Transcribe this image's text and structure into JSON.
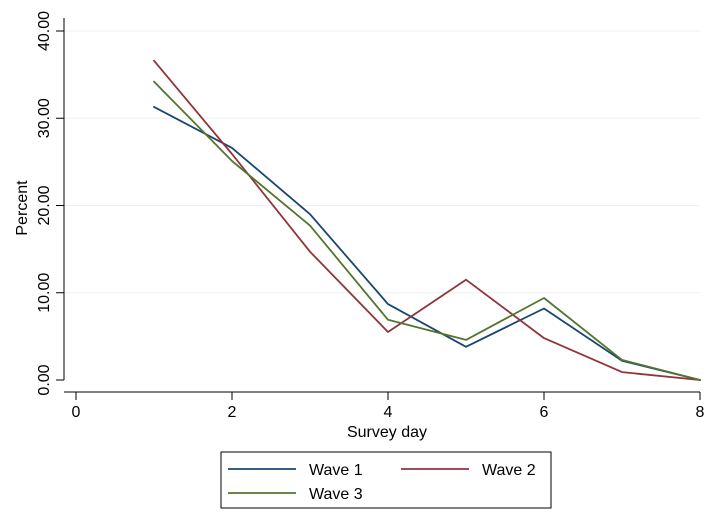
{
  "chart_data": {
    "type": "line",
    "title": "",
    "xlabel": "Survey day",
    "ylabel": "Percent",
    "xlim": [
      0,
      8
    ],
    "ylim": [
      0,
      40
    ],
    "xticks": [
      0,
      2,
      4,
      6,
      8
    ],
    "xtick_labels": [
      "0",
      "2",
      "4",
      "6",
      "8"
    ],
    "yticks": [
      0,
      10,
      20,
      30,
      40
    ],
    "ytick_labels": [
      "0.00",
      "10.00",
      "20.00",
      "30.00",
      "40.00"
    ],
    "grid": true,
    "legend_position": "bottom",
    "x": [
      1,
      2,
      3,
      4,
      5,
      6,
      7,
      8
    ],
    "series": [
      {
        "name": "Wave 1",
        "color": "#1a476f",
        "values": [
          31.3,
          26.6,
          19.0,
          8.7,
          3.8,
          8.2,
          2.2,
          0.0
        ]
      },
      {
        "name": "Wave 2",
        "color": "#90353b",
        "values": [
          36.6,
          25.9,
          14.7,
          5.5,
          11.5,
          4.8,
          0.9,
          0.0
        ]
      },
      {
        "name": "Wave 3",
        "color": "#55752f",
        "values": [
          34.2,
          25.1,
          17.7,
          6.9,
          4.6,
          9.4,
          2.3,
          0.0
        ]
      }
    ]
  }
}
